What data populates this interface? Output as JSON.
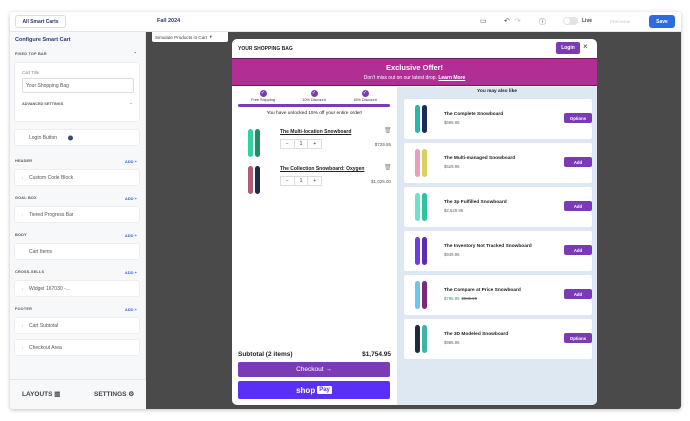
{
  "topbar": {
    "all_carts": "All Smart Carts",
    "season": "Fall 2024",
    "live_label": "Live",
    "preview_label": "PREVIEW",
    "save_label": "Save",
    "live_on": false
  },
  "sidebar": {
    "title": "Configure Smart Cart",
    "fixed_top_bar": "FIXED TOP BAR",
    "cart_title_label": "Cart Title",
    "cart_title_value": "Your Shopping Bag",
    "advanced_settings": "ADVANCED SETTINGS",
    "login_button": "Login Button",
    "add_label": "ADD",
    "sections": [
      {
        "title": "HEADER",
        "items": [
          "Custom Code Block"
        ]
      },
      {
        "title": "GOAL BOX",
        "items": [
          "Tiered Progress Bar"
        ]
      },
      {
        "title": "BODY",
        "items": [
          "Cart Items"
        ]
      },
      {
        "title": "CROSS-SELLS",
        "items": [
          "Widget 167030 -..."
        ]
      },
      {
        "title": "FOOTER",
        "items": [
          "Cart Subtotal",
          "Checkout Area"
        ]
      }
    ],
    "layouts": "LAYOUTS",
    "settings": "SETTINGS"
  },
  "canvas": {
    "simulate": "Simulate Products in Cart"
  },
  "cart": {
    "title": "YOUR SHOPPING BAG",
    "login": "Login",
    "close": "×",
    "promo_title": "Exclusive Offer!",
    "promo_text": "Don't miss out on our latest drop.",
    "promo_link": "Learn More",
    "tiers": [
      "Free Shipping",
      "10% Discount",
      "15% Discount"
    ],
    "progress_percent": 100,
    "unlock_msg": "You have unlocked 15% off your entire order!",
    "items": [
      {
        "name": "The Multi-location Snowboard",
        "qty": "1",
        "price": "$729.95",
        "colors": [
          "#2fd3a0",
          "#1f8f64"
        ]
      },
      {
        "name": "The Collection Snowboard: Oxygen",
        "qty": "1",
        "price": "$1,025.00",
        "colors": [
          "#b05a78",
          "#1e2b48"
        ]
      }
    ],
    "subtotal_label": "Subtotal (2 items)",
    "subtotal_value": "$1,754.95",
    "checkout": "Checkout →",
    "shop": "shop",
    "pay": "Pay",
    "accent": "#7a3bb5",
    "promo_color": "#b12f94",
    "ymal": "You may also like",
    "recs": [
      {
        "name": "The Complete Snowboard",
        "price": "$699.95",
        "button": "Options",
        "colors": [
          "#29b8a8",
          "#1a2c5a"
        ]
      },
      {
        "name": "The Multi-managed Snowboard",
        "price": "$629.95",
        "button": "Add",
        "colors": [
          "#e8a0b8",
          "#d8d060"
        ]
      },
      {
        "name": "The 3p Fulfilled Snowboard",
        "price": "$2,629.95",
        "button": "Add",
        "colors": [
          "#6fe3c8",
          "#2bc49e"
        ]
      },
      {
        "name": "The Inventory Not Tracked Snowboard",
        "price": "$949.95",
        "button": "Add",
        "colors": [
          "#6a3ee0",
          "#5a2ab8"
        ]
      },
      {
        "name": "The Compare at Price Snowboard",
        "price": "$785.95",
        "compare": "$885.95",
        "button": "Add",
        "colors": [
          "#6cc6e8",
          "#7a2a7a"
        ]
      },
      {
        "name": "The 3D Modeled Snowboard",
        "price": "$985.95",
        "button": "Options",
        "colors": [
          "#1e2b3a",
          "#3fb3a8"
        ]
      }
    ]
  }
}
